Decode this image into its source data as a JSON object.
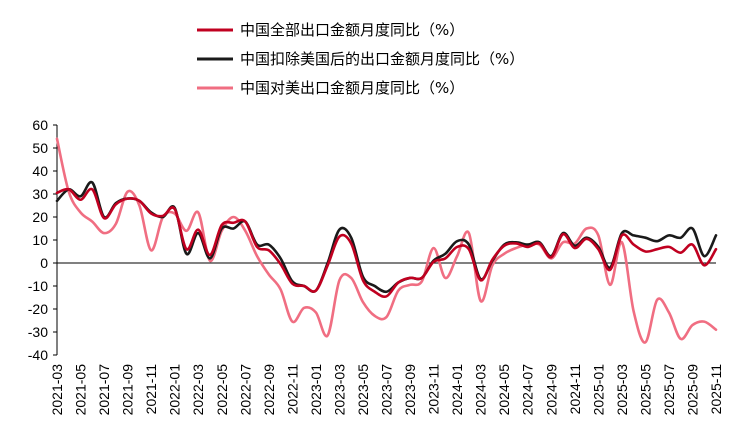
{
  "chart_data": {
    "type": "line",
    "title": "",
    "xlabel": "",
    "ylabel": "",
    "ylim": [
      -40,
      60
    ],
    "yticks": [
      -40,
      -30,
      -20,
      -10,
      0,
      10,
      20,
      30,
      40,
      50,
      60
    ],
    "grid": false,
    "legend_position": "top",
    "x": [
      "2021-03",
      "2021-04",
      "2021-05",
      "2021-06",
      "2021-07",
      "2021-08",
      "2021-09",
      "2021-10",
      "2021-11",
      "2021-12",
      "2022-01",
      "2022-02",
      "2022-03",
      "2022-04",
      "2022-05",
      "2022-06",
      "2022-07",
      "2022-08",
      "2022-09",
      "2022-10",
      "2022-11",
      "2022-12",
      "2023-01",
      "2023-02",
      "2023-03",
      "2023-04",
      "2023-05",
      "2023-06",
      "2023-07",
      "2023-08",
      "2023-09",
      "2023-10",
      "2023-11",
      "2023-12",
      "2024-01",
      "2024-02",
      "2024-03",
      "2024-04",
      "2024-05",
      "2024-06",
      "2024-07",
      "2024-08",
      "2024-09",
      "2024-10",
      "2024-11",
      "2024-12",
      "2025-01",
      "2025-02",
      "2025-03",
      "2025-04",
      "2025-05",
      "2025-06",
      "2025-07",
      "2025-08",
      "2025-09",
      "2025-10",
      "2025-11"
    ],
    "x_tick_labels": [
      "2021-03",
      "2021-05",
      "2021-07",
      "2021-09",
      "2021-11",
      "2022-01",
      "2022-03",
      "2022-05",
      "2022-07",
      "2022-09",
      "2022-11",
      "2023-01",
      "2023-03",
      "2023-05",
      "2023-07",
      "2023-09",
      "2023-11",
      "2024-01",
      "2024-03",
      "2024-05",
      "2024-07",
      "2024-09",
      "2024-11",
      "2025-01",
      "2025-03",
      "2025-05",
      "2025-07",
      "2025-09",
      "2025-11"
    ],
    "series": [
      {
        "name": "中国全部出口金额月度同比（%）",
        "color": "#c00020",
        "values": [
          30.5,
          32,
          27.5,
          32,
          19.5,
          25.5,
          28,
          27,
          21.5,
          20.5,
          23.5,
          6,
          14.5,
          3.5,
          16.5,
          17.5,
          18,
          7,
          5.5,
          -0.5,
          -9,
          -10,
          -12,
          -1,
          11.5,
          8.5,
          -7.5,
          -12.5,
          -14.5,
          -8.5,
          -6.5,
          -6.5,
          0.5,
          2,
          7,
          6,
          -7.5,
          1.5,
          7.5,
          8.5,
          7,
          8.5,
          2.5,
          12.5,
          6.5,
          10.5,
          6,
          -3,
          12,
          8,
          5,
          6,
          7,
          4.5,
          8,
          -1,
          6
        ]
      },
      {
        "name": "中国扣除美国后的出口金额月度同比（%）",
        "color": "#1a1a1a",
        "values": [
          27,
          32,
          29,
          35,
          20,
          26,
          28,
          27,
          22,
          20,
          24,
          4,
          13,
          2,
          15,
          15,
          18,
          8,
          8,
          2,
          -8,
          -10,
          -12,
          0,
          14.5,
          11,
          -6,
          -10,
          -12.5,
          -8.5,
          -6.5,
          -6.5,
          1,
          4,
          9.5,
          8,
          -7,
          1,
          8,
          9,
          8,
          9,
          3,
          13,
          7.5,
          11,
          7,
          -2,
          13,
          12,
          11,
          9.5,
          12,
          11,
          15,
          3,
          12
        ]
      },
      {
        "name": "中国对美出口金额月度同比（%）",
        "color": "#f06e82",
        "values": [
          54,
          31,
          22,
          18,
          13,
          17,
          31,
          25,
          5.5,
          20,
          21.5,
          14,
          22,
          1,
          14,
          20,
          14,
          3,
          -5,
          -11.5,
          -25.5,
          -19.5,
          -21.5,
          -31.5,
          -7.5,
          -6.5,
          -17,
          -23,
          -23.5,
          -12,
          -9.5,
          -8,
          6.5,
          -6.5,
          3,
          13,
          -16.5,
          -1,
          4,
          6.5,
          8,
          8,
          2,
          9,
          8.5,
          15,
          12,
          -9.5,
          9,
          -21,
          -34.5,
          -16,
          -21.5,
          -33,
          -27,
          -25.5,
          -29
        ]
      }
    ]
  }
}
